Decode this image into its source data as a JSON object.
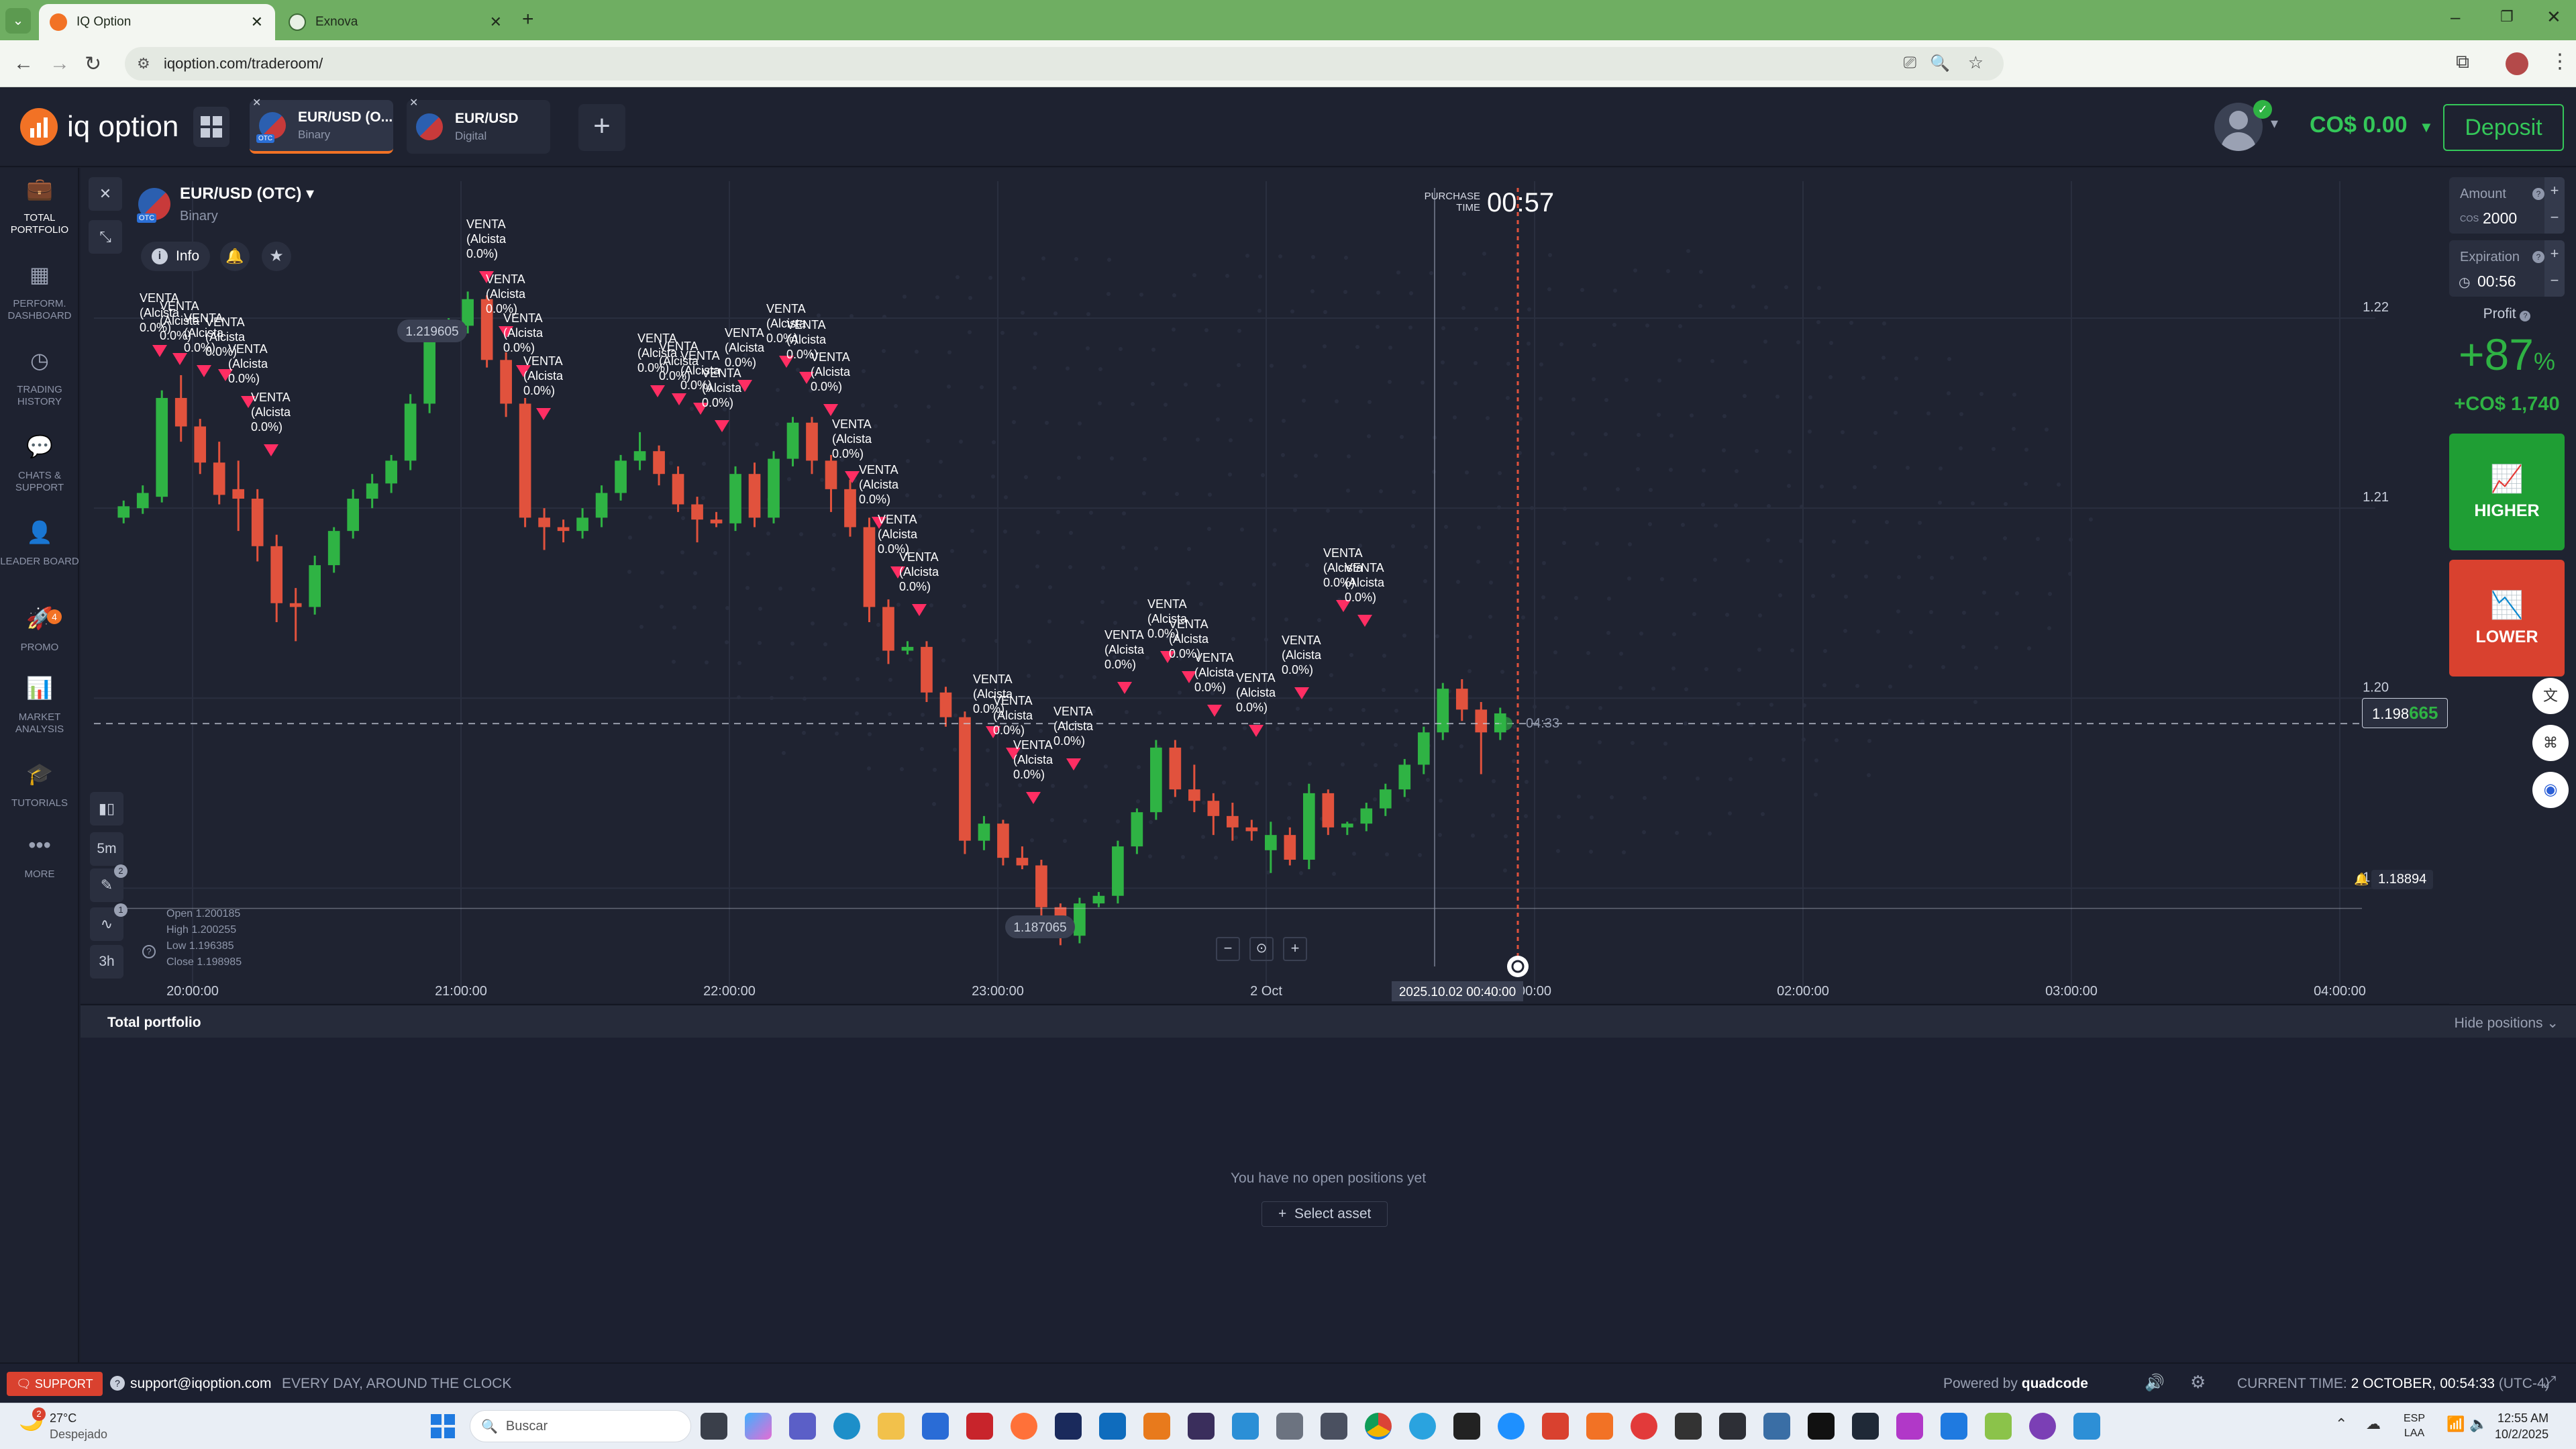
{
  "browser": {
    "tabs": [
      {
        "label": "IQ Option",
        "active": true
      },
      {
        "label": "Exnova",
        "active": false
      }
    ],
    "url": "iqoption.com/traderoom/"
  },
  "header": {
    "logo": "iq option",
    "asset_tabs": [
      {
        "name": "EUR/USD (O...",
        "type": "Binary",
        "badge": "OTC",
        "active": true
      },
      {
        "name": "EUR/USD",
        "type": "Digital",
        "active": false
      }
    ],
    "balance": "CO$ 0.00",
    "deposit_label": "Deposit"
  },
  "sidebar": {
    "items": [
      {
        "label": "TOTAL PORTFOLIO",
        "icon": "briefcase-icon"
      },
      {
        "label": "PERFORM. DASHBOARD",
        "icon": "dashboard-icon"
      },
      {
        "label": "TRADING HISTORY",
        "icon": "clock-icon"
      },
      {
        "label": "CHATS & SUPPORT",
        "icon": "chat-icon"
      },
      {
        "label": "LEADER BOARD",
        "icon": "leader-icon"
      },
      {
        "label": "PROMO",
        "icon": "promo-icon",
        "badge": "4"
      },
      {
        "label": "MARKET ANALYSIS",
        "icon": "analysis-icon"
      },
      {
        "label": "TUTORIALS",
        "icon": "graduation-icon"
      },
      {
        "label": "MORE",
        "icon": "more-icon"
      }
    ]
  },
  "chart": {
    "asset_name": "EUR/USD (OTC)",
    "asset_type": "Binary",
    "info_label": "Info",
    "purchase_time_label": "PURCHASE TIME",
    "purchase_countdown": "00:57",
    "timeframe": "5m",
    "period": "3h",
    "tool_badge_1": "2",
    "tool_badge_2": "1",
    "ohlc": {
      "open": "Open  1.200185",
      "high": "High  1.200255",
      "low": "Low  1.196385",
      "close": "Close  1.198985"
    },
    "max_label": "1.219605",
    "min_label": "1.187065",
    "current_price_prefix": "1.198",
    "current_price_suffix": "665",
    "alert_price": "1.18894",
    "candle_timer": "04:33",
    "current_time_label": "2025.10.02 00:40:00",
    "price_ticks": [
      "1.22",
      "1.21",
      "1.20",
      "1.19"
    ],
    "time_ticks": [
      "20:00:00",
      "21:00:00",
      "22:00:00",
      "23:00:00",
      "2 Oct",
      "00:00",
      "02:00:00",
      "03:00:00",
      "04:00:00"
    ],
    "signal_text": [
      "VENTA",
      "(Alcista",
      "0.0%)"
    ]
  },
  "trade_panel": {
    "amount_label": "Amount",
    "amount_currency": "COS",
    "amount_value": "2000",
    "expiration_label": "Expiration",
    "expiration_value": "00:56",
    "profit_label": "Profit",
    "profit_pct": "+87",
    "profit_pct_sign": "%",
    "profit_amount": "+CO$ 1,740",
    "higher_label": "HIGHER",
    "lower_label": "LOWER"
  },
  "portfolio": {
    "title": "Total portfolio",
    "hide_label": "Hide positions",
    "empty_text": "You have no open positions yet",
    "select_asset": "Select asset"
  },
  "footer": {
    "support_label": "SUPPORT",
    "email": "support@iqoption.com",
    "hours": "EVERY DAY, AROUND THE CLOCK",
    "powered": "Powered by",
    "powered_brand": "quadcode",
    "current_time_label": "CURRENT TIME:",
    "current_time_value": "2 OCTOBER, 00:54:33",
    "tz": "(UTC-4)"
  },
  "taskbar": {
    "weather_temp": "27°C",
    "weather_desc": "Despejado",
    "weather_badge": "2",
    "search_placeholder": "Buscar",
    "lang_1": "ESP",
    "lang_2": "LAA",
    "time": "12:55 AM",
    "date": "10/2/2025"
  },
  "colors": {
    "up": "#2fb344",
    "down": "#e1523d",
    "accent": "#f27225",
    "deposit": "#34c759",
    "higher_bg": "#1f9e34",
    "lower_bg": "#d9412f"
  },
  "chart_data": {
    "type": "candlestick",
    "y_range": [
      1.185,
      1.23
    ],
    "time_ticks": [
      "20:00:00",
      "21:00:00",
      "22:00:00",
      "23:00:00",
      "2 Oct",
      "00:00",
      "02:00:00",
      "03:00:00",
      "04:00:00"
    ],
    "price_ticks": [
      1.22,
      1.21,
      1.2,
      1.19
    ],
    "candles": [
      [
        1.2095,
        1.2104,
        1.2092,
        1.2101
      ],
      [
        1.21,
        1.2112,
        1.2097,
        1.2108
      ],
      [
        1.2106,
        1.2162,
        1.2103,
        1.2158
      ],
      [
        1.2158,
        1.217,
        1.2135,
        1.2143
      ],
      [
        1.2143,
        1.2147,
        1.2118,
        1.2124
      ],
      [
        1.2124,
        1.2135,
        1.2102,
        1.2107
      ],
      [
        1.211,
        1.2125,
        1.2088,
        1.2105
      ],
      [
        1.2105,
        1.211,
        1.2072,
        1.208
      ],
      [
        1.208,
        1.2086,
        1.204,
        1.205
      ],
      [
        1.205,
        1.2058,
        1.203,
        1.2048
      ],
      [
        1.2048,
        1.2075,
        1.2044,
        1.207
      ],
      [
        1.207,
        1.209,
        1.2066,
        1.2088
      ],
      [
        1.2088,
        1.211,
        1.2084,
        1.2105
      ],
      [
        1.2105,
        1.2118,
        1.21,
        1.2113
      ],
      [
        1.2113,
        1.2128,
        1.2108,
        1.2125
      ],
      [
        1.2125,
        1.216,
        1.212,
        1.2155
      ],
      [
        1.2155,
        1.2198,
        1.215,
        1.2194
      ],
      [
        1.2194,
        1.22,
        1.219,
        1.2196
      ],
      [
        1.2196,
        1.2214,
        1.2192,
        1.221
      ],
      [
        1.221,
        1.2212,
        1.2174,
        1.2178
      ],
      [
        1.2178,
        1.2182,
        1.2148,
        1.2155
      ],
      [
        1.2155,
        1.2158,
        1.209,
        1.2095
      ],
      [
        1.2095,
        1.21,
        1.2078,
        1.209
      ],
      [
        1.209,
        1.2094,
        1.2082,
        1.2088
      ],
      [
        1.2088,
        1.21,
        1.2084,
        1.2095
      ],
      [
        1.2095,
        1.2112,
        1.209,
        1.2108
      ],
      [
        1.2108,
        1.2128,
        1.2104,
        1.2125
      ],
      [
        1.2125,
        1.214,
        1.212,
        1.213
      ],
      [
        1.213,
        1.2133,
        1.2112,
        1.2118
      ],
      [
        1.2118,
        1.2122,
        1.2098,
        1.2102
      ],
      [
        1.2102,
        1.2106,
        1.2082,
        1.2094
      ],
      [
        1.2094,
        1.2098,
        1.209,
        1.2092
      ],
      [
        1.2092,
        1.2122,
        1.2088,
        1.2118
      ],
      [
        1.2118,
        1.2124,
        1.209,
        1.2095
      ],
      [
        1.2095,
        1.213,
        1.2092,
        1.2126
      ],
      [
        1.2126,
        1.2148,
        1.2122,
        1.2145
      ],
      [
        1.2145,
        1.2148,
        1.2118,
        1.2125
      ],
      [
        1.2125,
        1.2128,
        1.2098,
        1.211
      ],
      [
        1.211,
        1.2115,
        1.2085,
        1.209
      ],
      [
        1.209,
        1.2095,
        1.204,
        1.2048
      ],
      [
        1.2048,
        1.2052,
        1.2018,
        1.2025
      ],
      [
        1.2025,
        1.203,
        1.2023,
        1.2027
      ],
      [
        1.2027,
        1.203,
        1.1998,
        1.2003
      ],
      [
        1.2003,
        1.2006,
        1.1985,
        1.199
      ],
      [
        1.199,
        1.1993,
        1.1918,
        1.1925
      ],
      [
        1.1925,
        1.1938,
        1.192,
        1.1934
      ],
      [
        1.1934,
        1.1936,
        1.1912,
        1.1916
      ],
      [
        1.1916,
        1.1922,
        1.191,
        1.1912
      ],
      [
        1.1912,
        1.1915,
        1.1885,
        1.189
      ],
      [
        1.189,
        1.1892,
        1.187,
        1.1875
      ],
      [
        1.1875,
        1.1895,
        1.1871,
        1.1892
      ],
      [
        1.1892,
        1.1898,
        1.189,
        1.1896
      ],
      [
        1.1896,
        1.1925,
        1.1892,
        1.1922
      ],
      [
        1.1922,
        1.1942,
        1.1918,
        1.194
      ],
      [
        1.194,
        1.1978,
        1.1936,
        1.1974
      ],
      [
        1.1974,
        1.1978,
        1.1948,
        1.1952
      ],
      [
        1.1952,
        1.1965,
        1.194,
        1.1946
      ],
      [
        1.1946,
        1.195,
        1.1928,
        1.1938
      ],
      [
        1.1938,
        1.1945,
        1.1925,
        1.1932
      ],
      [
        1.1932,
        1.1936,
        1.1925,
        1.193
      ],
      [
        1.192,
        1.1935,
        1.1908,
        1.1928
      ],
      [
        1.1928,
        1.1932,
        1.1912,
        1.1915
      ],
      [
        1.1915,
        1.1955,
        1.191,
        1.195
      ],
      [
        1.195,
        1.1952,
        1.1928,
        1.1932
      ],
      [
        1.1932,
        1.1935,
        1.1928,
        1.1934
      ],
      [
        1.1934,
        1.1945,
        1.193,
        1.1942
      ],
      [
        1.1942,
        1.1955,
        1.1938,
        1.1952
      ],
      [
        1.1952,
        1.1968,
        1.1948,
        1.1965
      ],
      [
        1.1965,
        1.1985,
        1.196,
        1.1982
      ],
      [
        1.1982,
        1.2008,
        1.1978,
        1.2005
      ],
      [
        1.2005,
        1.201,
        1.1988,
        1.1994
      ],
      [
        1.1994,
        1.1998,
        1.196,
        1.1982
      ],
      [
        1.1982,
        1.1995,
        1.1978,
        1.1992
      ]
    ]
  }
}
